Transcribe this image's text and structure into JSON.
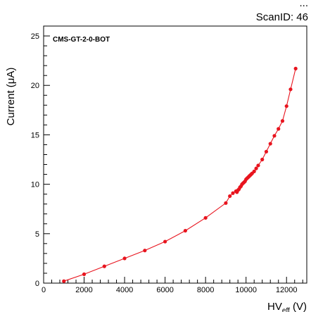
{
  "header": {
    "top_text": "...",
    "scan_id": "ScanID: 46"
  },
  "chart_data": {
    "type": "scatter",
    "title": "",
    "annotation": "CMS-GT-2-0-BOT",
    "xlabel": "HV",
    "xlabel_subscript": "eff",
    "xlabel_unit": "(V)",
    "ylabel": "Current (μA)",
    "xlim": [
      0,
      13000
    ],
    "ylim": [
      0,
      26
    ],
    "x_ticks": [
      0,
      2000,
      4000,
      6000,
      8000,
      10000,
      12000
    ],
    "y_ticks": [
      0,
      5,
      10,
      15,
      20,
      25
    ],
    "grid": false,
    "legend": "none",
    "series": [
      {
        "color": "#e8141e",
        "x": [
          1000,
          2000,
          3000,
          4000,
          5000,
          6000,
          7000,
          8000,
          9000,
          9200,
          9350,
          9500,
          9550,
          9600,
          9650,
          9700,
          9750,
          9800,
          9850,
          9900,
          9950,
          10000,
          10050,
          10100,
          10150,
          10200,
          10250,
          10300,
          10400,
          10500,
          10600,
          10800,
          11000,
          11200,
          11400,
          11600,
          11800,
          12000,
          12200,
          12450
        ],
        "values": [
          0.2,
          0.9,
          1.7,
          2.5,
          3.3,
          4.2,
          5.3,
          6.6,
          8.1,
          8.8,
          9.1,
          9.3,
          9.2,
          9.4,
          9.5,
          9.7,
          9.8,
          10.0,
          10.1,
          10.2,
          10.3,
          10.5,
          10.6,
          10.7,
          10.8,
          10.9,
          11.0,
          11.1,
          11.3,
          11.6,
          11.9,
          12.5,
          13.3,
          14.1,
          14.9,
          15.6,
          16.4,
          17.9,
          19.6,
          21.7
        ]
      }
    ]
  }
}
